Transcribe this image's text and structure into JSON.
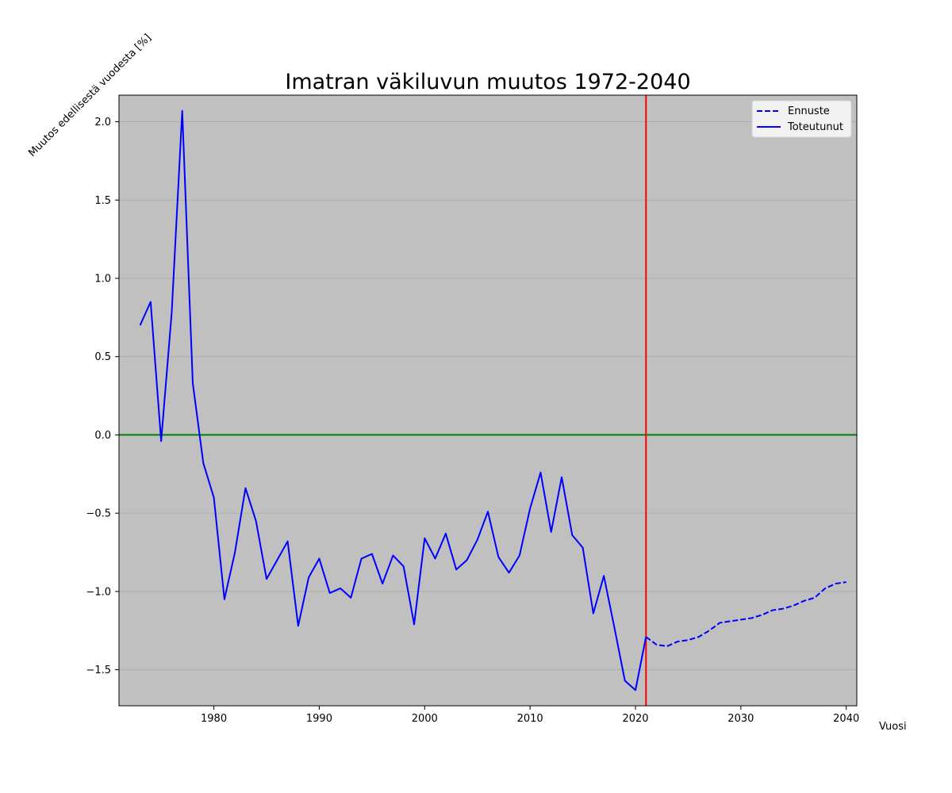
{
  "chart_data": {
    "type": "line",
    "title": "Imatran väkiluvun muutos 1972-2040",
    "xlabel": "Vuosi",
    "ylabel": "Muutos edellisestä vuodesta [%]",
    "xlim": [
      1971,
      2041
    ],
    "ylim": [
      -1.73,
      2.17
    ],
    "xticks": [
      1980,
      1990,
      2000,
      2010,
      2020,
      2030,
      2040
    ],
    "yticks": [
      -1.5,
      -1.0,
      -0.5,
      0.0,
      0.5,
      1.0,
      1.5,
      2.0
    ],
    "grid": "horizontal",
    "legend_position": "top-right",
    "background_color": "#c0c0c0",
    "reference_lines": [
      {
        "orientation": "horizontal",
        "value": 0.0,
        "color": "#008000"
      },
      {
        "orientation": "vertical",
        "value": 2021,
        "color": "#ff0000"
      }
    ],
    "series": [
      {
        "name": "Ennuste",
        "style": "dashed",
        "color": "#0000ff",
        "x": [
          2021,
          2022,
          2023,
          2024,
          2025,
          2026,
          2027,
          2028,
          2029,
          2030,
          2031,
          2032,
          2033,
          2034,
          2035,
          2036,
          2037,
          2038,
          2039,
          2040
        ],
        "y": [
          -1.29,
          -1.34,
          -1.35,
          -1.32,
          -1.31,
          -1.29,
          -1.25,
          -1.2,
          -1.19,
          -1.18,
          -1.17,
          -1.15,
          -1.12,
          -1.11,
          -1.09,
          -1.06,
          -1.04,
          -0.98,
          -0.95,
          -0.94
        ]
      },
      {
        "name": "Toteutunut",
        "style": "solid",
        "color": "#0000ff",
        "x": [
          1973,
          1974,
          1975,
          1976,
          1977,
          1978,
          1979,
          1980,
          1981,
          1982,
          1983,
          1984,
          1985,
          1986,
          1987,
          1988,
          1989,
          1990,
          1991,
          1992,
          1993,
          1994,
          1995,
          1996,
          1997,
          1998,
          1999,
          2000,
          2001,
          2002,
          2003,
          2004,
          2005,
          2006,
          2007,
          2008,
          2009,
          2010,
          2011,
          2012,
          2013,
          2014,
          2015,
          2016,
          2017,
          2018,
          2019,
          2020,
          2021
        ],
        "y": [
          0.7,
          0.85,
          -0.04,
          0.78,
          2.07,
          0.33,
          -0.18,
          -0.4,
          -1.05,
          -0.75,
          -0.34,
          -0.55,
          -0.92,
          -0.8,
          -0.68,
          -1.22,
          -0.91,
          -0.79,
          -1.01,
          -0.98,
          -1.04,
          -0.79,
          -0.76,
          -0.95,
          -0.77,
          -0.84,
          -1.21,
          -0.66,
          -0.79,
          -0.63,
          -0.86,
          -0.8,
          -0.67,
          -0.49,
          -0.78,
          -0.88,
          -0.77,
          -0.47,
          -0.24,
          -0.62,
          -0.27,
          -0.64,
          -0.72,
          -1.14,
          -0.9,
          -1.23,
          -1.57,
          -1.63,
          -1.29
        ]
      }
    ]
  }
}
